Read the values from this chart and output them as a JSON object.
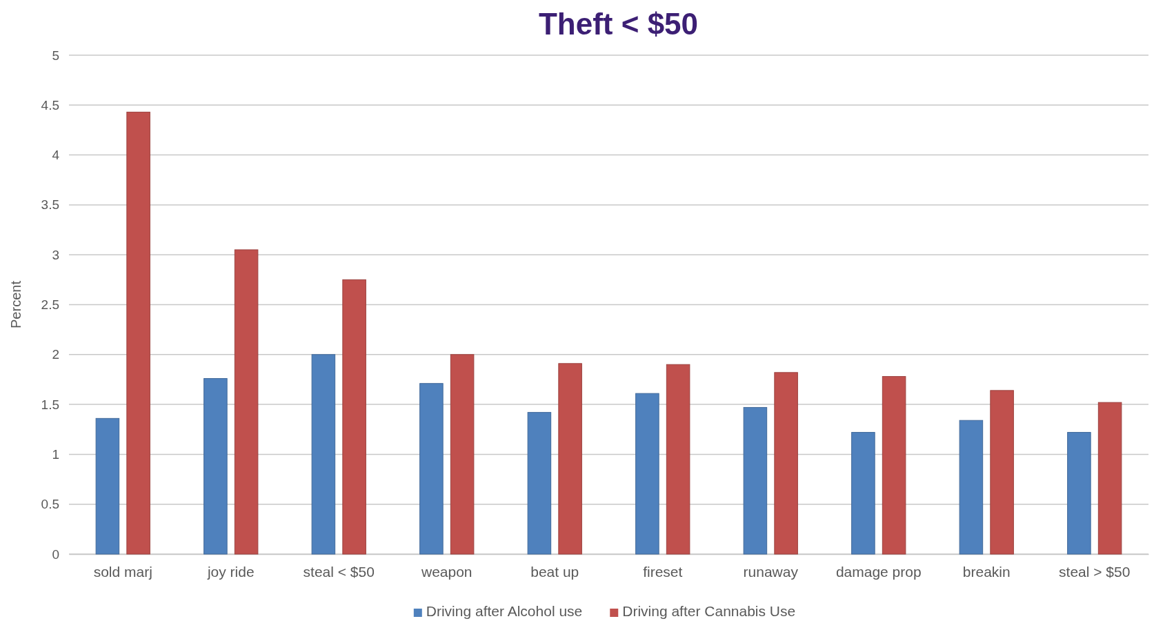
{
  "chart_data": {
    "type": "bar",
    "title": "Theft < $50",
    "ylabel": "Percent",
    "categories": [
      "sold marj",
      "joy ride",
      "steal < $50",
      "weapon",
      "beat up",
      "fireset",
      "runaway",
      "damage prop",
      "breakin",
      "steal > $50"
    ],
    "series": [
      {
        "name": "Driving after Alcohol use",
        "color": "#4f81bd",
        "values": [
          1.36,
          1.76,
          2.0,
          1.71,
          1.42,
          1.61,
          1.47,
          1.22,
          1.34,
          1.22
        ]
      },
      {
        "name": "Driving after Cannabis Use",
        "color": "#c0504d",
        "values": [
          4.43,
          3.05,
          2.75,
          2.0,
          1.91,
          1.9,
          1.82,
          1.78,
          1.64,
          1.52
        ]
      }
    ],
    "ylim": [
      0,
      5
    ],
    "yticks": [
      0,
      0.5,
      1,
      1.5,
      2,
      2.5,
      3,
      3.5,
      4,
      4.5,
      5
    ],
    "grid": "y",
    "legend": "bottom"
  }
}
